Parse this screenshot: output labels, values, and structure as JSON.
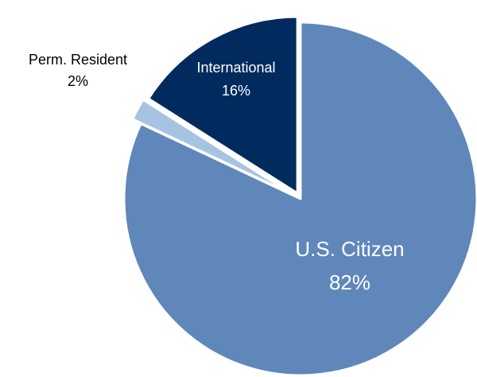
{
  "chart_data": {
    "type": "pie",
    "title": "",
    "slices": [
      {
        "label": "U.S. Citizen",
        "value": 82,
        "value_label": "82%",
        "color": "#5f87ba",
        "exploded": false,
        "label_color": "#ffffff",
        "label_placement": "inside"
      },
      {
        "label": "Perm. Resident",
        "value": 2,
        "value_label": "2%",
        "color": "#a6c3e2",
        "exploded": true,
        "label_color": "#000000",
        "label_placement": "outside"
      },
      {
        "label": "International",
        "value": 16,
        "value_label": "16%",
        "color": "#012b5e",
        "exploded": true,
        "label_color": "#ffffff",
        "label_placement": "inside"
      }
    ],
    "start_angle": "12 o'clock",
    "direction": "clockwise",
    "legend": "none"
  }
}
